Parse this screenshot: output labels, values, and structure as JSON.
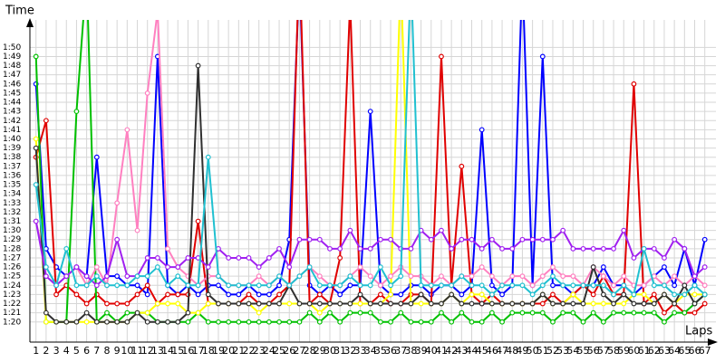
{
  "chart_data": {
    "type": "line",
    "y_label": "Time",
    "x_label": "Laps",
    "x": [
      1,
      2,
      3,
      4,
      5,
      6,
      7,
      8,
      9,
      10,
      11,
      12,
      13,
      14,
      15,
      16,
      17,
      18,
      19,
      20,
      21,
      22,
      23,
      24,
      25,
      26,
      27,
      28,
      29,
      30,
      31,
      32,
      33,
      34,
      35,
      36,
      37,
      38,
      39,
      40,
      41,
      42,
      43,
      44,
      45,
      46,
      47,
      48,
      49,
      50,
      51,
      52,
      53,
      54,
      55,
      56,
      57,
      58,
      59,
      60,
      61,
      62,
      63,
      64,
      65,
      66,
      67
    ],
    "xlim": [
      0.4,
      68.1
    ],
    "xticks": [
      1,
      2,
      3,
      4,
      5,
      6,
      7,
      8,
      9,
      10,
      11,
      12,
      13,
      14,
      15,
      16,
      17,
      18,
      19,
      20,
      21,
      22,
      23,
      24,
      25,
      26,
      27,
      28,
      29,
      30,
      31,
      32,
      33,
      34,
      35,
      36,
      37,
      38,
      39,
      40,
      41,
      42,
      43,
      44,
      45,
      46,
      47,
      48,
      49,
      50,
      51,
      52,
      53,
      54,
      55,
      56,
      57,
      58,
      59,
      60,
      61,
      62,
      63,
      64,
      65,
      66,
      67
    ],
    "ylim": [
      77.8,
      113
    ],
    "yticks": [
      {
        "value": 80,
        "label": "1:20"
      },
      {
        "value": 81,
        "label": "1:21"
      },
      {
        "value": 82,
        "label": "1:22"
      },
      {
        "value": 83,
        "label": "1:23"
      },
      {
        "value": 84,
        "label": "1:24"
      },
      {
        "value": 85,
        "label": "1:25"
      },
      {
        "value": 86,
        "label": "1:26"
      },
      {
        "value": 87,
        "label": "1:27"
      },
      {
        "value": 88,
        "label": "1:28"
      },
      {
        "value": 89,
        "label": "1:29"
      },
      {
        "value": 90,
        "label": "1:30"
      },
      {
        "value": 91,
        "label": "1:31"
      },
      {
        "value": 92,
        "label": "1:32"
      },
      {
        "value": 93,
        "label": "1:33"
      },
      {
        "value": 94,
        "label": "1:34"
      },
      {
        "value": 95,
        "label": "1:35"
      },
      {
        "value": 96,
        "label": "1:36"
      },
      {
        "value": 97,
        "label": "1:37"
      },
      {
        "value": 98,
        "label": "1:38"
      },
      {
        "value": 99,
        "label": "1:39"
      },
      {
        "value": 100,
        "label": "1:40"
      },
      {
        "value": 101,
        "label": "1:41"
      },
      {
        "value": 102,
        "label": "1:42"
      },
      {
        "value": 103,
        "label": "1:43"
      },
      {
        "value": 104,
        "label": "1:44"
      },
      {
        "value": 105,
        "label": "1:45"
      },
      {
        "value": 106,
        "label": "1:46"
      },
      {
        "value": 107,
        "label": "1:47"
      },
      {
        "value": 108,
        "label": "1:48"
      },
      {
        "value": 109,
        "label": "1:49"
      },
      {
        "value": 110,
        "label": "1:50"
      }
    ],
    "grid": true,
    "series": [
      {
        "color": "#0000ff",
        "values": [
          106,
          88,
          86,
          85,
          86,
          85,
          98,
          85,
          85,
          84,
          84,
          83,
          109,
          84,
          83,
          84,
          83,
          84,
          84,
          83,
          83,
          84,
          83,
          83,
          84,
          89,
          118,
          84,
          83,
          84,
          83,
          84,
          84,
          103,
          84,
          83,
          83,
          84,
          84,
          83,
          84,
          84,
          83,
          84,
          101,
          84,
          83,
          84,
          118,
          84,
          109,
          84,
          84,
          83,
          84,
          84,
          86,
          84,
          84,
          83,
          84,
          85,
          86,
          84,
          88,
          84,
          89
        ]
      },
      {
        "color": "#e00000",
        "values": [
          98,
          102,
          83,
          84,
          83,
          82,
          83,
          82,
          82,
          82,
          83,
          84,
          82,
          83,
          83,
          83,
          91,
          82,
          82,
          82,
          82,
          83,
          82,
          82,
          83,
          84,
          120,
          82,
          83,
          82,
          87,
          115,
          82,
          82,
          83,
          82,
          82,
          83,
          83,
          82,
          109,
          84,
          97,
          83,
          82,
          83,
          82,
          82,
          82,
          82,
          82,
          83,
          82,
          83,
          84,
          83,
          85,
          83,
          83,
          106,
          82,
          83,
          81,
          82,
          81,
          81,
          82
        ]
      },
      {
        "color": "#00c000",
        "values": [
          109,
          80,
          80,
          80,
          103,
          118,
          80,
          81,
          80,
          81,
          81,
          81,
          80,
          80,
          80,
          80,
          81,
          80,
          80,
          80,
          80,
          80,
          80,
          80,
          80,
          80,
          80,
          81,
          80,
          81,
          80,
          81,
          81,
          81,
          80,
          80,
          81,
          80,
          80,
          80,
          81,
          80,
          81,
          80,
          80,
          81,
          80,
          81,
          81,
          81,
          81,
          80,
          81,
          81,
          80,
          81,
          80,
          81,
          81,
          81,
          81,
          81,
          80,
          81,
          81,
          82,
          83
        ]
      },
      {
        "color": "#ffff00",
        "values": [
          100,
          80,
          80,
          80,
          80,
          80,
          80,
          80,
          80,
          80,
          81,
          81,
          82,
          82,
          82,
          81,
          81,
          82,
          82,
          82,
          82,
          82,
          81,
          82,
          82,
          82,
          82,
          82,
          81,
          82,
          82,
          82,
          82,
          82,
          82,
          83,
          118,
          82,
          82,
          82,
          82,
          83,
          82,
          83,
          83,
          82,
          82,
          82,
          82,
          82,
          83,
          82,
          82,
          83,
          82,
          82,
          82,
          82,
          82,
          83,
          83,
          82,
          83,
          82,
          83,
          83,
          83
        ]
      },
      {
        "color": "#ff80c0",
        "values": [
          91,
          86,
          84,
          85,
          86,
          84,
          86,
          84,
          93,
          101,
          90,
          105,
          114,
          88,
          86,
          85,
          84,
          85,
          85,
          84,
          84,
          84,
          85,
          84,
          85,
          84,
          85,
          86,
          85,
          84,
          84,
          85,
          86,
          85,
          84,
          85,
          86,
          85,
          85,
          84,
          85,
          84,
          85,
          85,
          86,
          85,
          84,
          85,
          85,
          84,
          85,
          86,
          85,
          85,
          84,
          86,
          85,
          84,
          85,
          84,
          84,
          85,
          84,
          85,
          84,
          85,
          84
        ]
      },
      {
        "color": "#303030",
        "values": [
          99,
          81,
          80,
          80,
          80,
          81,
          80,
          80,
          80,
          80,
          81,
          80,
          80,
          80,
          80,
          81,
          108,
          83,
          82,
          82,
          82,
          82,
          82,
          82,
          82,
          84,
          82,
          82,
          82,
          82,
          82,
          82,
          83,
          82,
          82,
          82,
          82,
          82,
          83,
          82,
          82,
          83,
          82,
          82,
          82,
          82,
          82,
          82,
          82,
          82,
          83,
          82,
          82,
          82,
          82,
          86,
          83,
          82,
          83,
          82,
          82,
          82,
          83,
          82,
          84,
          82,
          83
        ]
      },
      {
        "color": "#a020f0",
        "values": [
          91,
          85,
          84,
          85,
          86,
          85,
          84,
          85,
          89,
          85,
          85,
          87,
          87,
          86,
          86,
          87,
          87,
          86,
          88,
          87,
          87,
          87,
          86,
          87,
          88,
          86,
          89,
          89,
          89,
          88,
          88,
          90,
          88,
          88,
          89,
          89,
          88,
          88,
          90,
          89,
          90,
          88,
          89,
          89,
          88,
          89,
          88,
          88,
          89,
          89,
          89,
          89,
          90,
          88,
          88,
          88,
          88,
          88,
          90,
          87,
          88,
          88,
          87,
          89,
          88,
          85,
          86
        ]
      },
      {
        "color": "#20c0d0",
        "values": [
          95,
          86,
          84,
          88,
          84,
          84,
          85,
          84,
          84,
          84,
          85,
          85,
          86,
          84,
          85,
          84,
          84,
          98,
          85,
          84,
          84,
          84,
          84,
          84,
          85,
          84,
          85,
          86,
          84,
          84,
          84,
          85,
          84,
          84,
          86,
          84,
          85,
          118,
          84,
          84,
          84,
          84,
          85,
          84,
          84,
          83,
          84,
          84,
          84,
          83,
          84,
          85,
          84,
          84,
          84,
          84,
          84,
          83,
          84,
          83,
          88,
          84,
          84,
          83,
          83,
          84,
          83
        ]
      }
    ]
  }
}
